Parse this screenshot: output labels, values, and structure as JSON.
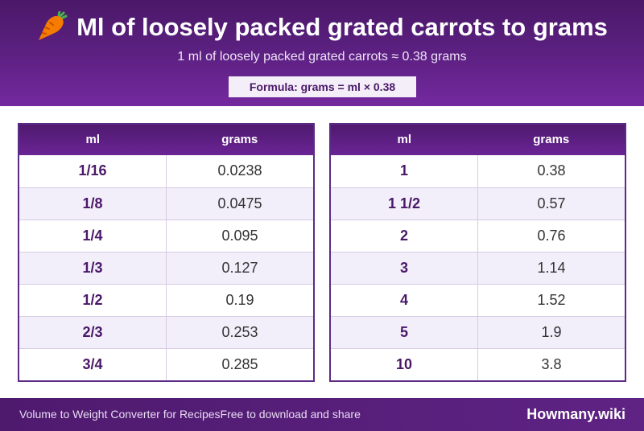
{
  "header": {
    "title": "Ml of loosely packed grated carrots to grams",
    "title_icon": "carrot-icon",
    "subtitle": "1 ml of loosely packed grated carrots ≈ 0.38 grams",
    "formula": "Formula: grams = ml × 0.38"
  },
  "tables": [
    {
      "columns": [
        "ml",
        "grams"
      ],
      "rows": [
        {
          "ml": "1/16",
          "grams": "0.0238"
        },
        {
          "ml": "1/8",
          "grams": "0.0475"
        },
        {
          "ml": "1/4",
          "grams": "0.095"
        },
        {
          "ml": "1/3",
          "grams": "0.127"
        },
        {
          "ml": "1/2",
          "grams": "0.19"
        },
        {
          "ml": "2/3",
          "grams": "0.253"
        },
        {
          "ml": "3/4",
          "grams": "0.285"
        }
      ]
    },
    {
      "columns": [
        "ml",
        "grams"
      ],
      "rows": [
        {
          "ml": "1",
          "grams": "0.38"
        },
        {
          "ml": "1 1/2",
          "grams": "0.57"
        },
        {
          "ml": "2",
          "grams": "0.76"
        },
        {
          "ml": "3",
          "grams": "1.14"
        },
        {
          "ml": "4",
          "grams": "1.52"
        },
        {
          "ml": "5",
          "grams": "1.9"
        },
        {
          "ml": "10",
          "grams": "3.8"
        }
      ]
    }
  ],
  "footer": {
    "left_text": "Volume to Weight Converter for Recipes",
    "middle_text": "Free to download and share",
    "brand": "Howmany.wiki"
  },
  "colors": {
    "header_purple": "#5e2184",
    "ml_text": "#4a1868",
    "row_alt": "#f2eefa"
  }
}
